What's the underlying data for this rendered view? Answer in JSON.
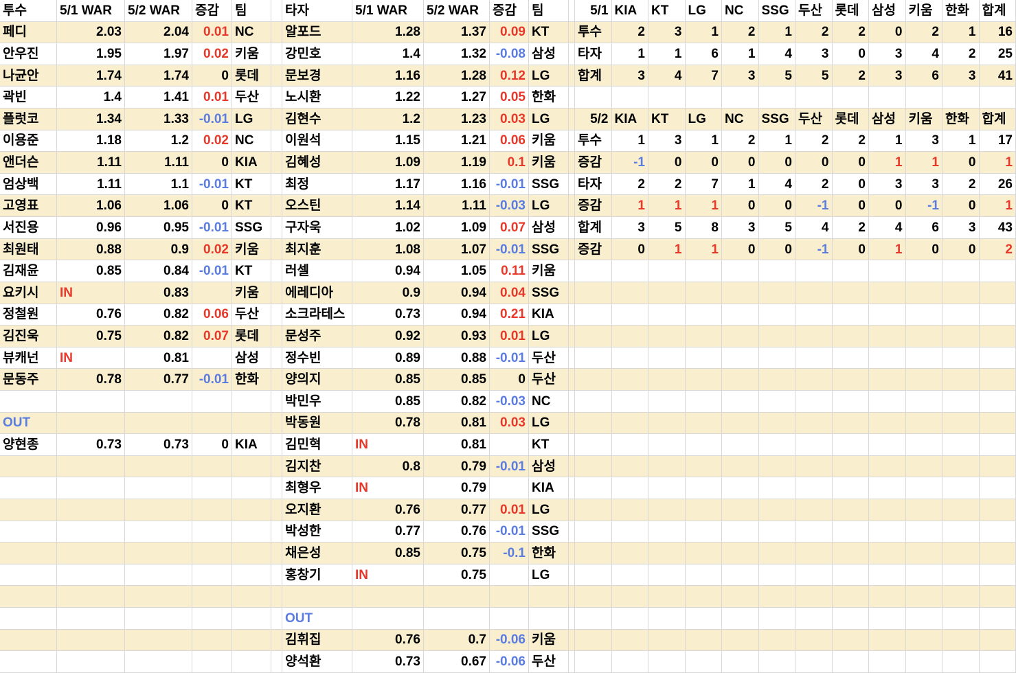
{
  "colors": {
    "stripe": "#f9efce",
    "grid": "#d8d8d8",
    "text": "#000000",
    "positive": "#e8382a",
    "negative": "#5b7ce0"
  },
  "in_label": "IN",
  "pitchers": {
    "headers": {
      "name": "투수",
      "war1": "5/1 WAR",
      "war2": "5/2 WAR",
      "diff": "증감",
      "team": "팀"
    },
    "players": [
      {
        "name": "페디",
        "war1": "2.03",
        "war2": "2.04",
        "diff": "0.01",
        "team": "NC"
      },
      {
        "name": "안우진",
        "war1": "1.95",
        "war2": "1.97",
        "diff": "0.02",
        "team": "키움"
      },
      {
        "name": "나균안",
        "war1": "1.74",
        "war2": "1.74",
        "diff": "0",
        "team": "롯데"
      },
      {
        "name": "곽빈",
        "war1": "1.4",
        "war2": "1.41",
        "diff": "0.01",
        "team": "두산"
      },
      {
        "name": "플럿코",
        "war1": "1.34",
        "war2": "1.33",
        "diff": "-0.01",
        "team": "LG"
      },
      {
        "name": "이용준",
        "war1": "1.18",
        "war2": "1.2",
        "diff": "0.02",
        "team": "NC"
      },
      {
        "name": "앤더슨",
        "war1": "1.11",
        "war2": "1.11",
        "diff": "0",
        "team": "KIA"
      },
      {
        "name": "엄상백",
        "war1": "1.11",
        "war2": "1.1",
        "diff": "-0.01",
        "team": "KT"
      },
      {
        "name": "고영표",
        "war1": "1.06",
        "war2": "1.06",
        "diff": "0",
        "team": "KT"
      },
      {
        "name": "서진용",
        "war1": "0.96",
        "war2": "0.95",
        "diff": "-0.01",
        "team": "SSG"
      },
      {
        "name": "최원태",
        "war1": "0.88",
        "war2": "0.9",
        "diff": "0.02",
        "team": "키움"
      },
      {
        "name": "김재윤",
        "war1": "0.85",
        "war2": "0.84",
        "diff": "-0.01",
        "team": "KT"
      },
      {
        "name": "요키시",
        "war1": "IN",
        "war2": "0.83",
        "diff": "",
        "team": "키움"
      },
      {
        "name": "정철원",
        "war1": "0.76",
        "war2": "0.82",
        "diff": "0.06",
        "team": "두산"
      },
      {
        "name": "김진욱",
        "war1": "0.75",
        "war2": "0.82",
        "diff": "0.07",
        "team": "롯데"
      },
      {
        "name": "뷰캐넌",
        "war1": "IN",
        "war2": "0.81",
        "diff": "",
        "team": "삼성"
      },
      {
        "name": "문동주",
        "war1": "0.78",
        "war2": "0.77",
        "diff": "-0.01",
        "team": "한화"
      }
    ],
    "out_label": "OUT",
    "out_players": [
      {
        "name": "양현종",
        "war1": "0.73",
        "war2": "0.73",
        "diff": "0",
        "team": "KIA"
      }
    ]
  },
  "batters": {
    "headers": {
      "name": "타자",
      "war1": "5/1 WAR",
      "war2": "5/2 WAR",
      "diff": "증감",
      "team": "팀"
    },
    "players": [
      {
        "name": "알포드",
        "war1": "1.28",
        "war2": "1.37",
        "diff": "0.09",
        "team": "KT"
      },
      {
        "name": "강민호",
        "war1": "1.4",
        "war2": "1.32",
        "diff": "-0.08",
        "team": "삼성"
      },
      {
        "name": "문보경",
        "war1": "1.16",
        "war2": "1.28",
        "diff": "0.12",
        "team": "LG"
      },
      {
        "name": "노시환",
        "war1": "1.22",
        "war2": "1.27",
        "diff": "0.05",
        "team": "한화"
      },
      {
        "name": "김현수",
        "war1": "1.2",
        "war2": "1.23",
        "diff": "0.03",
        "team": "LG"
      },
      {
        "name": "이원석",
        "war1": "1.15",
        "war2": "1.21",
        "diff": "0.06",
        "team": "키움"
      },
      {
        "name": "김혜성",
        "war1": "1.09",
        "war2": "1.19",
        "diff": "0.1",
        "team": "키움"
      },
      {
        "name": "최정",
        "war1": "1.17",
        "war2": "1.16",
        "diff": "-0.01",
        "team": "SSG"
      },
      {
        "name": "오스틴",
        "war1": "1.14",
        "war2": "1.11",
        "diff": "-0.03",
        "team": "LG"
      },
      {
        "name": "구자욱",
        "war1": "1.02",
        "war2": "1.09",
        "diff": "0.07",
        "team": "삼성"
      },
      {
        "name": "최지훈",
        "war1": "1.08",
        "war2": "1.07",
        "diff": "-0.01",
        "team": "SSG"
      },
      {
        "name": "러셀",
        "war1": "0.94",
        "war2": "1.05",
        "diff": "0.11",
        "team": "키움"
      },
      {
        "name": "에레디아",
        "war1": "0.9",
        "war2": "0.94",
        "diff": "0.04",
        "team": "SSG"
      },
      {
        "name": "소크라테스",
        "war1": "0.73",
        "war2": "0.94",
        "diff": "0.21",
        "team": "KIA"
      },
      {
        "name": "문성주",
        "war1": "0.92",
        "war2": "0.93",
        "diff": "0.01",
        "team": "LG"
      },
      {
        "name": "정수빈",
        "war1": "0.89",
        "war2": "0.88",
        "diff": "-0.01",
        "team": "두산"
      },
      {
        "name": "양의지",
        "war1": "0.85",
        "war2": "0.85",
        "diff": "0",
        "team": "두산"
      },
      {
        "name": "박민우",
        "war1": "0.85",
        "war2": "0.82",
        "diff": "-0.03",
        "team": "NC"
      },
      {
        "name": "박동원",
        "war1": "0.78",
        "war2": "0.81",
        "diff": "0.03",
        "team": "LG"
      },
      {
        "name": "김민혁",
        "war1": "IN",
        "war2": "0.81",
        "diff": "",
        "team": "KT"
      },
      {
        "name": "김지찬",
        "war1": "0.8",
        "war2": "0.79",
        "diff": "-0.01",
        "team": "삼성"
      },
      {
        "name": "최형우",
        "war1": "IN",
        "war2": "0.79",
        "diff": "",
        "team": "KIA"
      },
      {
        "name": "오지환",
        "war1": "0.76",
        "war2": "0.77",
        "diff": "0.01",
        "team": "LG"
      },
      {
        "name": "박성한",
        "war1": "0.77",
        "war2": "0.76",
        "diff": "-0.01",
        "team": "SSG"
      },
      {
        "name": "채은성",
        "war1": "0.85",
        "war2": "0.75",
        "diff": "-0.1",
        "team": "한화"
      },
      {
        "name": "홍창기",
        "war1": "IN",
        "war2": "0.75",
        "diff": "",
        "team": "LG"
      }
    ],
    "out_label": "OUT",
    "out_players": [
      {
        "name": "김휘집",
        "war1": "0.76",
        "war2": "0.7",
        "diff": "-0.06",
        "team": "키움"
      },
      {
        "name": "양석환",
        "war1": "0.73",
        "war2": "0.67",
        "diff": "-0.06",
        "team": "두산"
      }
    ]
  },
  "summary_51": {
    "title": "5/1",
    "teams": [
      "KIA",
      "KT",
      "LG",
      "NC",
      "SSG",
      "두산",
      "롯데",
      "삼성",
      "키움",
      "한화",
      "합계"
    ],
    "rows": [
      {
        "label": "투수",
        "kind": "counts",
        "values": [
          "2",
          "3",
          "1",
          "2",
          "1",
          "2",
          "2",
          "0",
          "2",
          "1",
          "16"
        ]
      },
      {
        "label": "타자",
        "kind": "counts",
        "values": [
          "1",
          "1",
          "6",
          "1",
          "4",
          "3",
          "0",
          "3",
          "4",
          "2",
          "25"
        ]
      },
      {
        "label": "합계",
        "kind": "counts",
        "values": [
          "3",
          "4",
          "7",
          "3",
          "5",
          "5",
          "2",
          "3",
          "6",
          "3",
          "41"
        ]
      }
    ]
  },
  "summary_52": {
    "title": "5/2",
    "teams": [
      "KIA",
      "KT",
      "LG",
      "NC",
      "SSG",
      "두산",
      "롯데",
      "삼성",
      "키움",
      "한화",
      "합계"
    ],
    "rows": [
      {
        "label": "투수",
        "kind": "counts",
        "values": [
          "1",
          "3",
          "1",
          "2",
          "1",
          "2",
          "2",
          "1",
          "3",
          "1",
          "17"
        ]
      },
      {
        "label": "증감",
        "kind": "diff",
        "values": [
          "-1",
          "0",
          "0",
          "0",
          "0",
          "0",
          "0",
          "1",
          "1",
          "0",
          "1"
        ]
      },
      {
        "label": "타자",
        "kind": "counts",
        "values": [
          "2",
          "2",
          "7",
          "1",
          "4",
          "2",
          "0",
          "3",
          "3",
          "2",
          "26"
        ]
      },
      {
        "label": "증감",
        "kind": "diff",
        "values": [
          "1",
          "1",
          "1",
          "0",
          "0",
          "-1",
          "0",
          "0",
          "-1",
          "0",
          "1"
        ]
      },
      {
        "label": "합계",
        "kind": "counts",
        "values": [
          "3",
          "5",
          "8",
          "3",
          "5",
          "4",
          "2",
          "4",
          "6",
          "3",
          "43"
        ]
      },
      {
        "label": "증감",
        "kind": "diff",
        "values": [
          "0",
          "1",
          "1",
          "0",
          "0",
          "-1",
          "0",
          "1",
          "0",
          "0",
          "2"
        ]
      }
    ]
  }
}
